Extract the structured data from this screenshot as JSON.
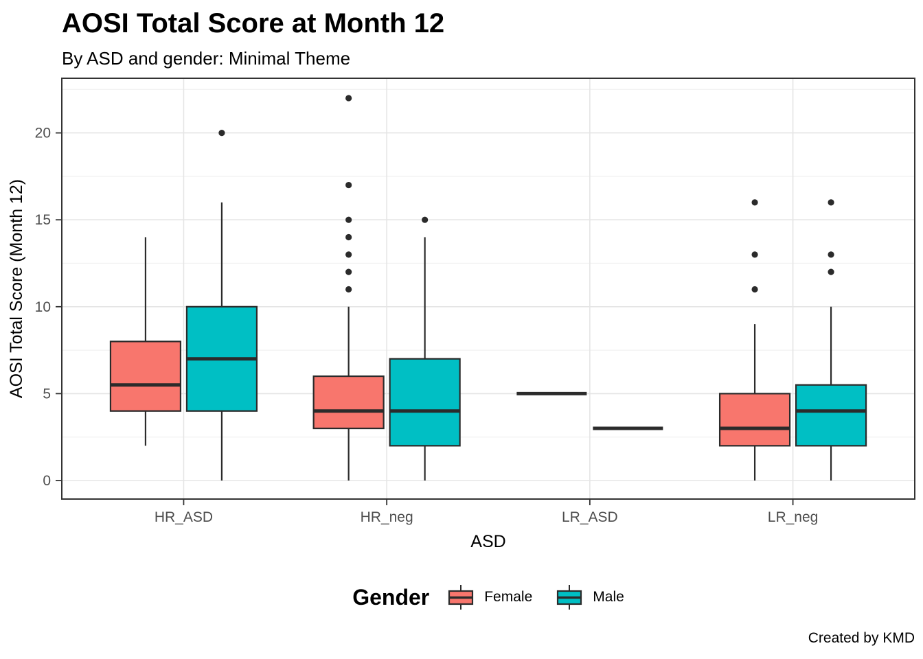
{
  "chart_data": {
    "type": "boxplot",
    "title": "AOSI Total Score at Month 12",
    "subtitle": "By ASD and gender: Minimal Theme",
    "caption": "Created by KMD",
    "xlabel": "ASD",
    "ylabel": "AOSI Total Score (Month 12)",
    "categories": [
      "HR_ASD",
      "HR_neg",
      "LR_ASD",
      "LR_neg"
    ],
    "y_ticks": [
      0,
      5,
      10,
      15,
      20
    ],
    "y_minor_gridlines": [
      2.5,
      7.5,
      12.5,
      17.5,
      22.5
    ],
    "ylim": [
      -1.1,
      23.2
    ],
    "grid": true,
    "legend": {
      "title": "Gender",
      "position": "bottom",
      "entries": [
        {
          "label": "Female",
          "color": "#F8766D"
        },
        {
          "label": "Male",
          "color": "#00BFC4"
        }
      ]
    },
    "series": [
      {
        "name": "Female",
        "color": "#F8766D",
        "boxes": [
          {
            "category": "HR_ASD",
            "min": 2,
            "q1": 4,
            "median": 5.5,
            "q3": 8,
            "max": 14,
            "outliers": []
          },
          {
            "category": "HR_neg",
            "min": 0,
            "q1": 3,
            "median": 4,
            "q3": 6,
            "max": 10,
            "outliers": [
              11,
              12,
              13,
              14,
              15,
              17,
              22
            ]
          },
          {
            "category": "LR_ASD",
            "min": 5,
            "q1": 5,
            "median": 5,
            "q3": 5,
            "max": 5,
            "outliers": []
          },
          {
            "category": "LR_neg",
            "min": 0,
            "q1": 2,
            "median": 3,
            "q3": 5,
            "max": 9,
            "outliers": [
              11,
              13,
              16
            ]
          }
        ]
      },
      {
        "name": "Male",
        "color": "#00BFC4",
        "boxes": [
          {
            "category": "HR_ASD",
            "min": 0,
            "q1": 4,
            "median": 7,
            "q3": 10,
            "max": 16,
            "outliers": [
              20
            ]
          },
          {
            "category": "HR_neg",
            "min": 0,
            "q1": 2,
            "median": 4,
            "q3": 7,
            "max": 14,
            "outliers": [
              15
            ]
          },
          {
            "category": "LR_ASD",
            "min": 3,
            "q1": 3,
            "median": 3,
            "q3": 3,
            "max": 3,
            "outliers": []
          },
          {
            "category": "LR_neg",
            "min": 0,
            "q1": 2,
            "median": 4,
            "q3": 5.5,
            "max": 10,
            "outliers": [
              12,
              13,
              16
            ]
          }
        ]
      }
    ],
    "style": {
      "female_fill": "#F8766D",
      "male_fill": "#00BFC4",
      "box_border": "#2B2B2B",
      "outlier_color": "#2B2B2B",
      "panel_border": "#333333",
      "grid_major": "#E5E5E5",
      "grid_minor": "#F0F0F0",
      "axis_text": "#4D4D4D",
      "title_text": "#000000"
    }
  }
}
